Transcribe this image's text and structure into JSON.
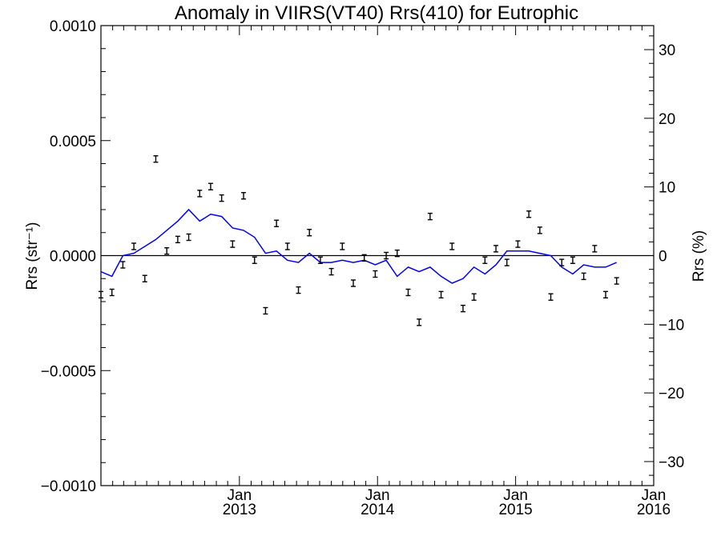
{
  "chart_data": {
    "type": "scatter",
    "title": "Anomaly in VIIRS(VT40) Rrs(410) for Eutrophic",
    "ylabel": "Rrs (str⁻¹)",
    "y2label": "Rrs (%)",
    "xlim": [
      "2012-01-01",
      "2016-01-01"
    ],
    "ylim": [
      -0.001,
      0.001
    ],
    "y2lim": [
      -33.5,
      33.5
    ],
    "yticks": [
      {
        "value": 0.001,
        "label": "0.0010"
      },
      {
        "value": 0.0005,
        "label": "0.0005"
      },
      {
        "value": 0.0,
        "label": "0.0000"
      },
      {
        "value": -0.0005,
        "label": "−0.0005"
      },
      {
        "value": -0.001,
        "label": "−0.0010"
      }
    ],
    "y2ticks": [
      {
        "value": 30,
        "label": "30"
      },
      {
        "value": 20,
        "label": "20"
      },
      {
        "value": 10,
        "label": "10"
      },
      {
        "value": 0,
        "label": "0"
      },
      {
        "value": -10,
        "label": "−10"
      },
      {
        "value": -20,
        "label": "−20"
      },
      {
        "value": -30,
        "label": "−30"
      }
    ],
    "xticks": [
      {
        "month": "Jan",
        "year": "2013",
        "date": "2013-01-01"
      },
      {
        "month": "Jan",
        "year": "2014",
        "date": "2014-01-01"
      },
      {
        "month": "Jan",
        "year": "2015",
        "date": "2015-01-01"
      },
      {
        "month": "Jan",
        "year": "2016",
        "date": "2016-01-01"
      }
    ],
    "zero_line": 0,
    "series": [
      {
        "kind": "errorbar",
        "color": "#000000",
        "points": [
          {
            "x": "2012-01-01",
            "y": -0.00017
          },
          {
            "x": "2012-01-30",
            "y": -0.00016
          },
          {
            "x": "2012-02-28",
            "y": -4e-05
          },
          {
            "x": "2012-03-28",
            "y": 4e-05
          },
          {
            "x": "2012-04-26",
            "y": -0.0001
          },
          {
            "x": "2012-05-25",
            "y": 0.00042
          },
          {
            "x": "2012-06-23",
            "y": 2e-05
          },
          {
            "x": "2012-07-22",
            "y": 7e-05
          },
          {
            "x": "2012-08-20",
            "y": 8e-05
          },
          {
            "x": "2012-09-18",
            "y": 0.00027
          },
          {
            "x": "2012-10-17",
            "y": 0.0003
          },
          {
            "x": "2012-11-15",
            "y": 0.00025
          },
          {
            "x": "2012-12-14",
            "y": 5e-05
          },
          {
            "x": "2013-01-12",
            "y": 0.00026
          },
          {
            "x": "2013-02-10",
            "y": -2e-05
          },
          {
            "x": "2013-03-11",
            "y": -0.00024
          },
          {
            "x": "2013-04-09",
            "y": 0.00014
          },
          {
            "x": "2013-05-08",
            "y": 4e-05
          },
          {
            "x": "2013-06-06",
            "y": -0.00015
          },
          {
            "x": "2013-07-05",
            "y": 0.0001
          },
          {
            "x": "2013-08-03",
            "y": -2e-05
          },
          {
            "x": "2013-09-01",
            "y": -7e-05
          },
          {
            "x": "2013-09-30",
            "y": 4e-05
          },
          {
            "x": "2013-10-29",
            "y": -0.00012
          },
          {
            "x": "2013-11-27",
            "y": -1e-05
          },
          {
            "x": "2013-12-26",
            "y": -8e-05
          },
          {
            "x": "2014-01-24",
            "y": 0.0
          },
          {
            "x": "2014-02-22",
            "y": 1e-05
          },
          {
            "x": "2014-03-23",
            "y": -0.00016
          },
          {
            "x": "2014-04-21",
            "y": -0.00029
          },
          {
            "x": "2014-05-20",
            "y": 0.00017
          },
          {
            "x": "2014-06-18",
            "y": -0.00017
          },
          {
            "x": "2014-07-17",
            "y": 4e-05
          },
          {
            "x": "2014-08-15",
            "y": -0.00023
          },
          {
            "x": "2014-09-13",
            "y": -0.00018
          },
          {
            "x": "2014-10-12",
            "y": -2e-05
          },
          {
            "x": "2014-11-10",
            "y": 3e-05
          },
          {
            "x": "2014-12-09",
            "y": -3e-05
          },
          {
            "x": "2015-01-07",
            "y": 5e-05
          },
          {
            "x": "2015-02-05",
            "y": 0.00018
          },
          {
            "x": "2015-03-06",
            "y": 0.00011
          },
          {
            "x": "2015-04-04",
            "y": -0.00018
          },
          {
            "x": "2015-05-03",
            "y": -3e-05
          },
          {
            "x": "2015-06-01",
            "y": -2e-05
          },
          {
            "x": "2015-06-30",
            "y": -9e-05
          },
          {
            "x": "2015-07-29",
            "y": 3e-05
          },
          {
            "x": "2015-08-27",
            "y": -0.00017
          },
          {
            "x": "2015-09-25",
            "y": -0.00011
          }
        ]
      },
      {
        "kind": "line",
        "color": "#0000ee",
        "points": [
          {
            "x": "2012-01-01",
            "y": -7e-05
          },
          {
            "x": "2012-01-30",
            "y": -9e-05
          },
          {
            "x": "2012-02-28",
            "y": 0.0
          },
          {
            "x": "2012-03-28",
            "y": 1e-05
          },
          {
            "x": "2012-04-26",
            "y": 4e-05
          },
          {
            "x": "2012-05-25",
            "y": 7e-05
          },
          {
            "x": "2012-06-23",
            "y": 0.00011
          },
          {
            "x": "2012-07-22",
            "y": 0.00015
          },
          {
            "x": "2012-08-20",
            "y": 0.0002
          },
          {
            "x": "2012-09-18",
            "y": 0.00015
          },
          {
            "x": "2012-10-17",
            "y": 0.00018
          },
          {
            "x": "2012-11-15",
            "y": 0.00017
          },
          {
            "x": "2012-12-14",
            "y": 0.00012
          },
          {
            "x": "2013-01-12",
            "y": 0.00011
          },
          {
            "x": "2013-02-10",
            "y": 8e-05
          },
          {
            "x": "2013-03-11",
            "y": 1e-05
          },
          {
            "x": "2013-04-09",
            "y": 2e-05
          },
          {
            "x": "2013-05-08",
            "y": -2e-05
          },
          {
            "x": "2013-06-06",
            "y": -3e-05
          },
          {
            "x": "2013-07-05",
            "y": 1e-05
          },
          {
            "x": "2013-08-03",
            "y": -3e-05
          },
          {
            "x": "2013-09-01",
            "y": -3e-05
          },
          {
            "x": "2013-09-30",
            "y": -2e-05
          },
          {
            "x": "2013-10-29",
            "y": -3e-05
          },
          {
            "x": "2013-11-27",
            "y": -2e-05
          },
          {
            "x": "2013-12-26",
            "y": -4e-05
          },
          {
            "x": "2014-01-24",
            "y": -2e-05
          },
          {
            "x": "2014-02-22",
            "y": -9e-05
          },
          {
            "x": "2014-03-23",
            "y": -5e-05
          },
          {
            "x": "2014-04-21",
            "y": -7e-05
          },
          {
            "x": "2014-05-20",
            "y": -5e-05
          },
          {
            "x": "2014-06-18",
            "y": -9e-05
          },
          {
            "x": "2014-07-17",
            "y": -0.00012
          },
          {
            "x": "2014-08-15",
            "y": -0.0001
          },
          {
            "x": "2014-09-13",
            "y": -5e-05
          },
          {
            "x": "2014-10-12",
            "y": -8e-05
          },
          {
            "x": "2014-11-10",
            "y": -4e-05
          },
          {
            "x": "2014-12-09",
            "y": 2e-05
          },
          {
            "x": "2015-01-07",
            "y": 2e-05
          },
          {
            "x": "2015-02-05",
            "y": 2e-05
          },
          {
            "x": "2015-03-06",
            "y": 1e-05
          },
          {
            "x": "2015-04-04",
            "y": 0.0
          },
          {
            "x": "2015-05-03",
            "y": -5e-05
          },
          {
            "x": "2015-06-01",
            "y": -8e-05
          },
          {
            "x": "2015-06-30",
            "y": -4e-05
          },
          {
            "x": "2015-07-29",
            "y": -5e-05
          },
          {
            "x": "2015-08-27",
            "y": -5e-05
          },
          {
            "x": "2015-09-25",
            "y": -3e-05
          }
        ]
      }
    ]
  }
}
